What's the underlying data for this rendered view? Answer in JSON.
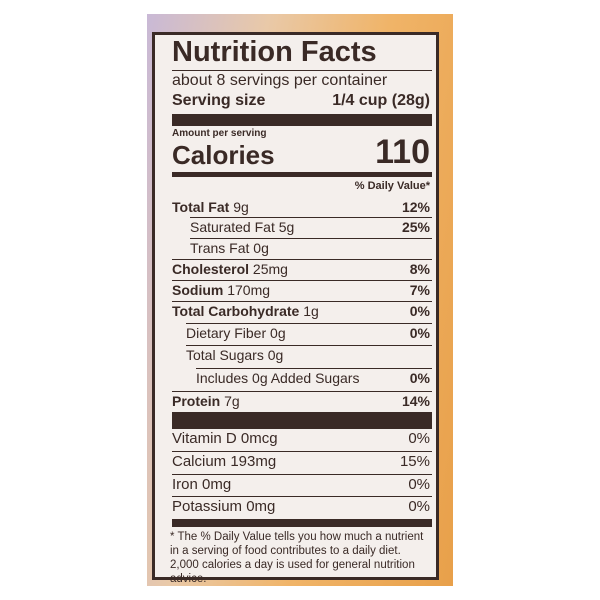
{
  "title": "Nutrition Facts",
  "servings": "about 8 servings per container",
  "serving_size_label": "Serving size",
  "serving_size_value": "1/4 cup (28g)",
  "amount_per_serving": "Amount per serving",
  "calories_label": "Calories",
  "calories_value": "110",
  "dv_header": "% Daily Value*",
  "nutrients": [
    {
      "name": "Total Fat",
      "amount": "9g",
      "dv": "12%"
    },
    {
      "name": "Saturated Fat",
      "amount": "5g",
      "dv": "25%"
    },
    {
      "name": "Trans Fat",
      "amount": "0g",
      "dv": ""
    },
    {
      "name": "Cholesterol",
      "amount": "25mg",
      "dv": "8%"
    },
    {
      "name": "Sodium",
      "amount": "170mg",
      "dv": "7%"
    },
    {
      "name": "Total Carbohydrate",
      "amount": "1g",
      "dv": "0%"
    },
    {
      "name": "Dietary Fiber",
      "amount": "0g",
      "dv": "0%"
    },
    {
      "name": "Total Sugars",
      "amount": "0g",
      "dv": ""
    },
    {
      "name": "Includes 0g Added Sugars",
      "amount": "",
      "dv": "0%"
    },
    {
      "name": "Protein",
      "amount": "7g",
      "dv": "14%"
    }
  ],
  "vitamins": [
    {
      "name": "Vitamin D 0mcg",
      "dv": "0%"
    },
    {
      "name": "Calcium 193mg",
      "dv": "15%"
    },
    {
      "name": "Iron 0mg",
      "dv": "0%"
    },
    {
      "name": "Potassium 0mg",
      "dv": "0%"
    }
  ],
  "footnote": "* The % Daily Value tells you how much a nutrient in a serving of food contributes to a daily diet. 2,000 calories a day is used for general nutrition advice."
}
